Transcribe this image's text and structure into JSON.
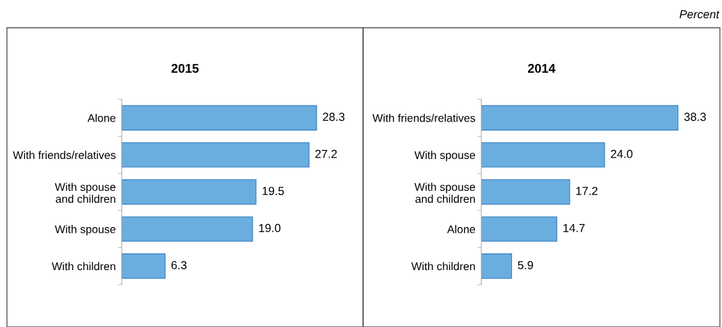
{
  "chart_data": [
    {
      "type": "bar",
      "orientation": "horizontal",
      "title": "2015",
      "categories": [
        "Alone",
        "With friends/relatives",
        "With spouse\nand children",
        "With spouse",
        "With children"
      ],
      "values": [
        28.3,
        27.2,
        19.5,
        19.0,
        6.3
      ],
      "value_labels": [
        "28.3",
        "27.2",
        "19.5",
        "19.0",
        "6.3"
      ],
      "color": "#6aaee0",
      "grid": false,
      "legend": false
    },
    {
      "type": "bar",
      "orientation": "horizontal",
      "title": "2014",
      "categories": [
        "With friends/relatives",
        "With spouse",
        "With spouse\nand children",
        "Alone",
        "With children"
      ],
      "values": [
        38.3,
        24.0,
        17.2,
        14.7,
        5.9
      ],
      "value_labels": [
        "38.3",
        "24.0",
        "17.2",
        "14.7",
        "5.9"
      ],
      "color": "#6aaee0",
      "grid": false,
      "legend": false,
      "annotations": [
        "Percent"
      ]
    }
  ]
}
